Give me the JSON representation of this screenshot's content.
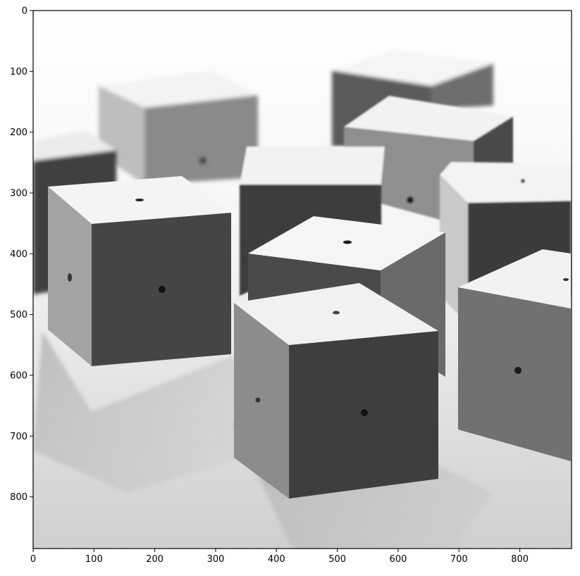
{
  "figure": {
    "kind": "matplotlib imshow of a grayscale photograph",
    "image_description_hidden": true
  },
  "axes": {
    "x_ticks": [
      0,
      100,
      200,
      300,
      400,
      500,
      600,
      700,
      800
    ],
    "y_ticks": [
      0,
      100,
      200,
      300,
      400,
      500,
      600,
      700,
      800
    ],
    "x_range": [
      0,
      885
    ],
    "y_range": [
      885,
      0
    ]
  },
  "colors": {
    "background": "#ffffff",
    "axis": "#000000",
    "tabletop": "#e6e6e6",
    "cube_top": "#f2f2f2",
    "cube_left": "#9a9a9a",
    "cube_right": "#4a4a4a",
    "cube_dark": "#3a3a3a",
    "hole": "#222222"
  }
}
